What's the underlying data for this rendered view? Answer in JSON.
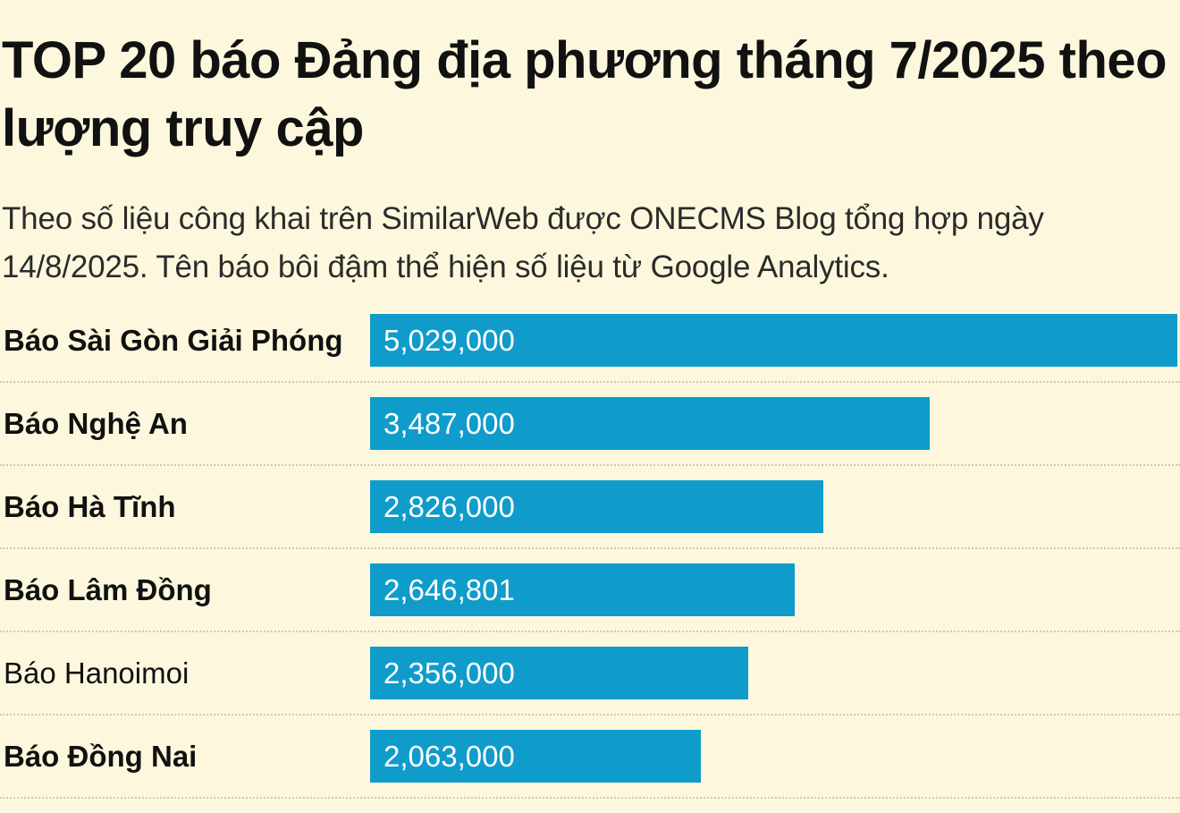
{
  "chart_data": {
    "type": "bar",
    "orientation": "horizontal",
    "title": "TOP 20 báo Đảng địa phương tháng 7/2025 theo lượng truy cập",
    "subtitle": "Theo số liệu công khai trên SimilarWeb được ONECMS Blog tổng hợp ngày 14/8/2025. Tên báo bôi đậm thể hiện số liệu từ Google Analytics.",
    "categories": [
      "Báo Sài Gòn Giải Phóng",
      "Báo Nghệ An",
      "Báo Hà Tĩnh",
      "Báo Lâm Đồng",
      "Báo Hanoimoi",
      "Báo Đồng Nai"
    ],
    "values": [
      5029000,
      3487000,
      2826000,
      2646801,
      2356000,
      2063000
    ],
    "value_labels": [
      "5,029,000",
      "3,487,000",
      "2,826,000",
      "2,646,801",
      "2,356,000",
      "2,063,000"
    ],
    "bold": [
      true,
      true,
      true,
      true,
      false,
      true
    ],
    "color": "#0f9ccb",
    "background": "#fdf8dd",
    "grid": false
  }
}
